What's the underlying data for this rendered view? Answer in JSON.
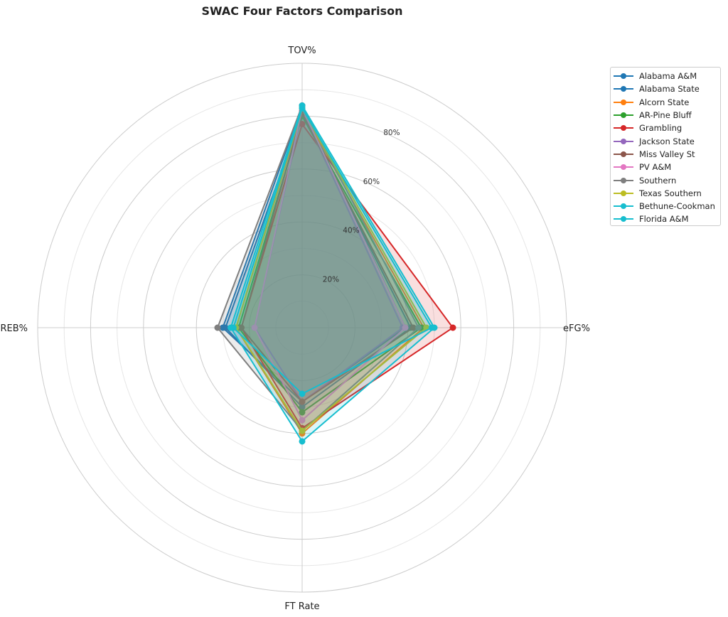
{
  "chart_data": {
    "type": "radar",
    "title": "SWAC Four Factors Comparison",
    "axes": [
      "eFG%",
      "TOV%",
      "OREB%",
      "FT Rate"
    ],
    "radial_ticks": [
      {
        "value": 20,
        "label": "20%"
      },
      {
        "value": 40,
        "label": "40%"
      },
      {
        "value": 60,
        "label": "60%"
      },
      {
        "value": 80,
        "label": "80%"
      }
    ],
    "radial_max": 100,
    "legend_position": "upper right",
    "series": [
      {
        "name": "Alabama A&M",
        "color": "#1f77b4",
        "values": [
          39,
          84,
          30,
          28
        ]
      },
      {
        "name": "Alabama State",
        "color": "#1f77b4",
        "values": [
          41,
          81,
          29,
          30
        ]
      },
      {
        "name": "Alcorn State",
        "color": "#ff7f0e",
        "values": [
          46,
          82,
          25,
          40
        ]
      },
      {
        "name": "AR-Pine Bluff",
        "color": "#2ca02c",
        "values": [
          45,
          80,
          24,
          32
        ]
      },
      {
        "name": "Grambling",
        "color": "#d62728",
        "values": [
          57,
          77,
          23,
          38
        ]
      },
      {
        "name": "Jackson State",
        "color": "#9467bd",
        "values": [
          38,
          82,
          18,
          28
        ]
      },
      {
        "name": "Miss Valley St",
        "color": "#8c564b",
        "values": [
          42,
          81,
          23,
          28
        ]
      },
      {
        "name": "PV A&M",
        "color": "#e377c2",
        "values": [
          39,
          83,
          18,
          35
        ]
      },
      {
        "name": "Southern",
        "color": "#7f7f7f",
        "values": [
          44,
          84,
          32,
          39
        ]
      },
      {
        "name": "Texas Southern",
        "color": "#bcbd22",
        "values": [
          47,
          83,
          25,
          39
        ]
      },
      {
        "name": "Bethune-Cookman",
        "color": "#17becf",
        "values": [
          49,
          83,
          26,
          25
        ]
      },
      {
        "name": "Florida A&M",
        "color": "#17becf",
        "values": [
          50,
          84,
          27,
          43
        ]
      }
    ]
  }
}
